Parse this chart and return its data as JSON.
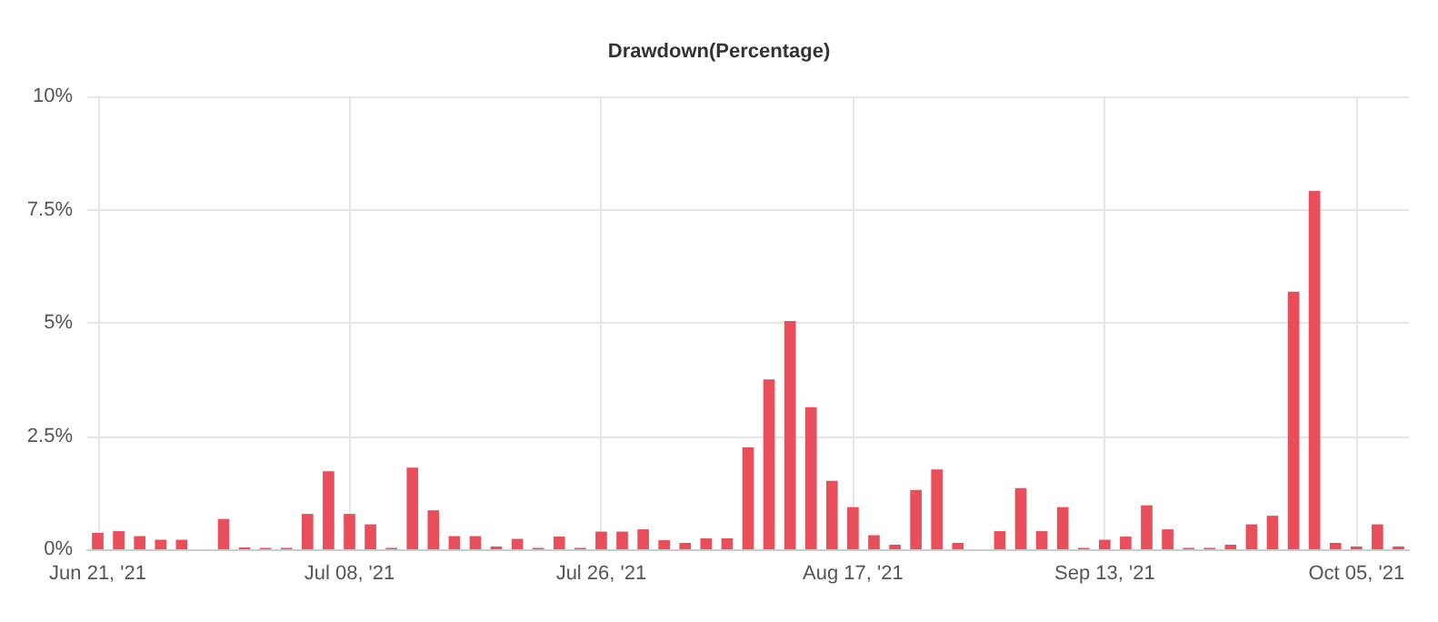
{
  "chart_data": {
    "type": "bar",
    "title": "Drawdown(Percentage)",
    "categories": [
      "Jun 21, '21",
      null,
      null,
      null,
      null,
      null,
      null,
      null,
      null,
      null,
      null,
      null,
      "Jul 08, '21",
      null,
      null,
      null,
      null,
      null,
      null,
      null,
      null,
      null,
      null,
      null,
      "Jul 26, '21",
      null,
      null,
      null,
      null,
      null,
      null,
      null,
      null,
      null,
      null,
      null,
      "Aug 17, '21",
      null,
      null,
      null,
      null,
      null,
      null,
      null,
      null,
      null,
      null,
      null,
      "Sep 13, '21",
      null,
      null,
      null,
      null,
      null,
      null,
      null,
      null,
      null,
      null,
      null,
      "Oct 05, '21",
      null,
      null
    ],
    "values": [
      0.36,
      0.4,
      0.29,
      0.21,
      0.21,
      0,
      0.67,
      0.04,
      0.03,
      0.03,
      0.78,
      1.72,
      0.78,
      0.55,
      0.03,
      1.8,
      0.86,
      0.29,
      0.29,
      0.06,
      0.23,
      0.03,
      0.28,
      0.03,
      0.39,
      0.39,
      0.44,
      0.2,
      0.14,
      0.24,
      0.24,
      2.25,
      3.75,
      5.04,
      3.14,
      1.51,
      0.93,
      0.31,
      0.1,
      1.31,
      1.76,
      0.14,
      0,
      0.4,
      1.35,
      0.4,
      0.93,
      0.03,
      0.21,
      0.28,
      0.97,
      0.44,
      0.03,
      0.03,
      0.1,
      0.55,
      0.74,
      5.69,
      7.91,
      0.14,
      0.06,
      0.55,
      0.06
    ],
    "color": "#e84f5a",
    "ylim": [
      0,
      10
    ],
    "yticks": [
      {
        "value": 0,
        "label": "0%"
      },
      {
        "value": 2.5,
        "label": "2.5%"
      },
      {
        "value": 5,
        "label": "5%"
      },
      {
        "value": 7.5,
        "label": "7.5%"
      },
      {
        "value": 10,
        "label": "10%"
      }
    ],
    "grid": true
  }
}
